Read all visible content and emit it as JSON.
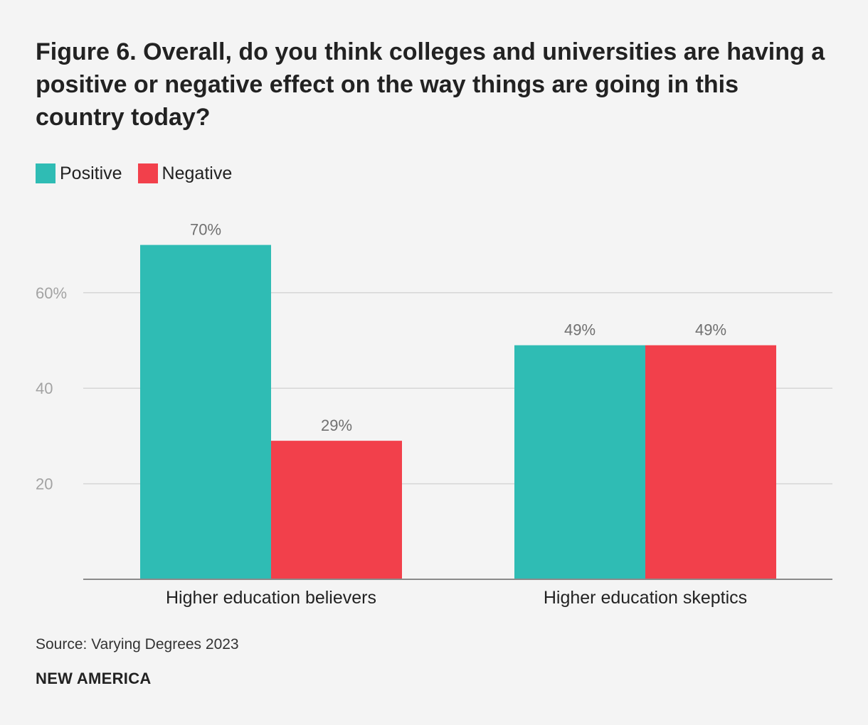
{
  "chart_data": {
    "type": "bar",
    "title": "Figure 6. Overall, do you think colleges and universities are having a positive or negative effect on the way things are going in this country today?",
    "categories": [
      "Higher education believers",
      "Higher education skeptics"
    ],
    "series": [
      {
        "name": "Positive",
        "color": "#2fbcb4",
        "values": [
          70,
          49
        ],
        "labels": [
          "70%",
          "49%"
        ]
      },
      {
        "name": "Negative",
        "color": "#f2404b",
        "values": [
          29,
          49
        ],
        "labels": [
          "29%",
          "49%"
        ]
      }
    ],
    "yticks": [
      20,
      40,
      60
    ],
    "ytick_labels": [
      "20",
      "40",
      "60%"
    ],
    "ylim": [
      0,
      80
    ],
    "xlabel": "",
    "ylabel": "",
    "grid": true,
    "legend_position": "top-left",
    "source": "Source: Varying Degrees 2023",
    "brand": "NEW AMERICA"
  },
  "colors": {
    "gridline": "#d6d6d6",
    "axis": "#8a8a8a",
    "tick_text": "#a3a3a3",
    "value_label": "#707070",
    "category_label": "#222222"
  }
}
